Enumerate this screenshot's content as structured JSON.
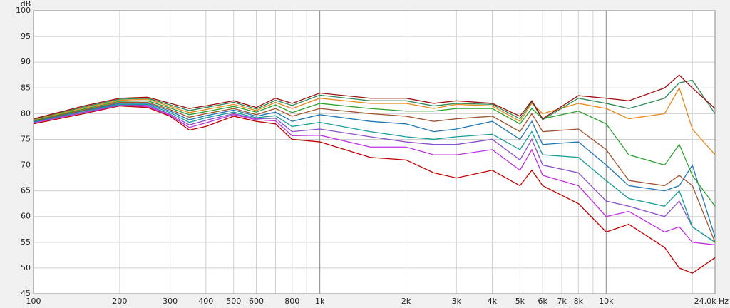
{
  "chart_data": {
    "type": "line",
    "y_label": "dB",
    "log_x": true,
    "grid": true,
    "xlim": [
      100,
      24000
    ],
    "ylim": [
      45,
      100
    ],
    "yticks": [
      45,
      50,
      55,
      60,
      65,
      70,
      75,
      80,
      85,
      90,
      95,
      100
    ],
    "xticks": [
      100,
      200,
      300,
      400,
      500,
      600,
      800,
      {
        "value": 1000,
        "label": "1k"
      },
      {
        "value": 2000,
        "label": "2k"
      },
      {
        "value": 3000,
        "label": "3k"
      },
      {
        "value": 4000,
        "label": "4k"
      },
      {
        "value": 5000,
        "label": "5k"
      },
      {
        "value": 6000,
        "label": "6k"
      },
      {
        "value": 7000,
        "label": "7k"
      },
      {
        "value": 8000,
        "label": "8k"
      },
      {
        "value": 10000,
        "label": "10k"
      },
      {
        "value": 24000,
        "label": "24.0k Hz"
      }
    ],
    "x_minor_ticks": [
      700,
      900,
      9000,
      20000
    ],
    "x": [
      100,
      150,
      200,
      250,
      300,
      350,
      400,
      500,
      600,
      700,
      800,
      1000,
      1500,
      2000,
      2500,
      3000,
      4000,
      5000,
      5500,
      6000,
      8000,
      10000,
      12000,
      16000,
      18000,
      20000,
      24000
    ],
    "series": [
      {
        "color": "#a01010",
        "values": [
          79,
          81.5,
          83,
          83.2,
          82,
          81,
          81.5,
          82.5,
          81.2,
          83,
          82,
          84,
          83,
          83,
          82,
          82.5,
          82,
          79.5,
          82.5,
          79,
          83.5,
          83,
          82.5,
          85,
          87.5,
          85,
          81
        ]
      },
      {
        "color": "#2e8b57",
        "values": [
          78.9,
          81.3,
          82.8,
          83,
          81.7,
          80.6,
          81.2,
          82.2,
          80.9,
          82.6,
          81.6,
          83.6,
          82.5,
          82.5,
          81.5,
          82,
          81.8,
          79,
          82.3,
          78.8,
          83,
          82,
          81,
          83,
          86,
          86.5,
          80
        ]
      },
      {
        "color": "#e8891c",
        "values": [
          78.8,
          81.1,
          82.6,
          82.8,
          81.4,
          80.2,
          80.8,
          81.8,
          80.6,
          82.2,
          81,
          83,
          82,
          82,
          81,
          81.8,
          81.5,
          78.5,
          82,
          80,
          82,
          81,
          79,
          80,
          85,
          77,
          72
        ]
      },
      {
        "color": "#2ca02c",
        "values": [
          78.7,
          80.9,
          82.4,
          82.5,
          81.1,
          79.8,
          80.4,
          81.4,
          80.3,
          81.7,
          80.2,
          82,
          81,
          80.5,
          80.5,
          81,
          81,
          78,
          81,
          79,
          80.5,
          78,
          72,
          70,
          74,
          68,
          62
        ]
      },
      {
        "color": "#a0522d",
        "values": [
          78.6,
          80.7,
          82.2,
          82.2,
          80.8,
          79.3,
          80,
          81,
          79.8,
          81,
          79.5,
          81,
          80,
          79.5,
          78.5,
          79,
          79.5,
          76.5,
          80,
          76.5,
          77,
          73,
          67,
          66,
          68,
          66,
          55
        ]
      },
      {
        "color": "#1f77b4",
        "values": [
          78.5,
          80.6,
          82,
          82,
          80.5,
          78.8,
          79.6,
          80.7,
          79.5,
          80.3,
          78.5,
          79.8,
          78.5,
          78,
          76.5,
          77,
          78.5,
          75,
          78.5,
          74,
          74.5,
          70,
          66,
          65,
          66,
          70,
          56
        ]
      },
      {
        "color": "#179c9c",
        "values": [
          78.4,
          80.5,
          81.8,
          81.8,
          80.2,
          78.3,
          79.2,
          80.3,
          79.2,
          79.6,
          77.5,
          78.3,
          76.5,
          75.5,
          75,
          75.5,
          76,
          73,
          76.5,
          72,
          71.5,
          67,
          63.5,
          62,
          65,
          58,
          55
        ]
      },
      {
        "color": "#8a4fc8",
        "values": [
          78.3,
          80.3,
          81.7,
          81.6,
          79.9,
          77.8,
          78.7,
          80,
          79,
          79.1,
          76.5,
          77,
          75.5,
          74.5,
          74,
          74,
          75,
          71,
          75,
          70,
          68.5,
          63,
          62,
          60,
          63,
          58,
          55
        ]
      },
      {
        "color": "#c030e0",
        "values": [
          78.2,
          80.2,
          81.6,
          81.4,
          79.7,
          77.3,
          78.2,
          79.8,
          78.8,
          78.6,
          75.7,
          75.8,
          73.5,
          73.5,
          72,
          72,
          73,
          69,
          73,
          68,
          66,
          60,
          61,
          57,
          58,
          55,
          54.5
        ]
      },
      {
        "color": "#c00000",
        "values": [
          78,
          80,
          81.5,
          81.2,
          79.5,
          76.8,
          77.5,
          79.5,
          78.5,
          78,
          75,
          74.5,
          71.5,
          71,
          68.5,
          67.5,
          69,
          66,
          69,
          66,
          62.5,
          57,
          58.5,
          54,
          50,
          49,
          52
        ]
      }
    ]
  }
}
